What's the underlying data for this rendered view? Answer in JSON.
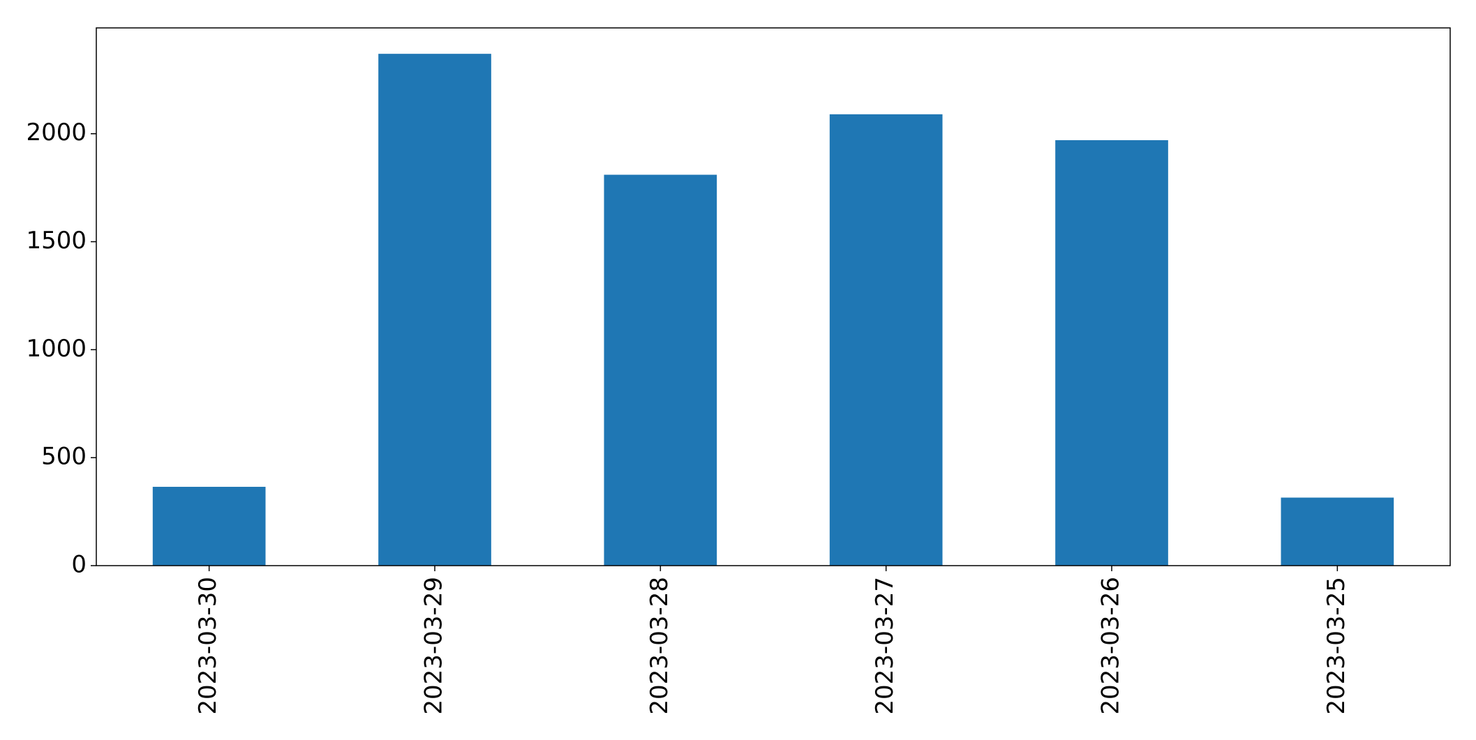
{
  "chart_data": {
    "type": "bar",
    "title": "",
    "xlabel": "",
    "ylabel": "",
    "categories": [
      "2023-03-30",
      "2023-03-29",
      "2023-03-28",
      "2023-03-27",
      "2023-03-26",
      "2023-03-25"
    ],
    "values": [
      365,
      2370,
      1810,
      2090,
      1970,
      315
    ],
    "ylim": [
      0,
      2490
    ],
    "yticks": [
      0,
      500,
      1000,
      1500,
      2000
    ],
    "ytick_labels": [
      "0",
      "500",
      "1000",
      "1500",
      "2000"
    ],
    "bar_color": "#1f77b4",
    "grid": false,
    "legend": "none"
  }
}
